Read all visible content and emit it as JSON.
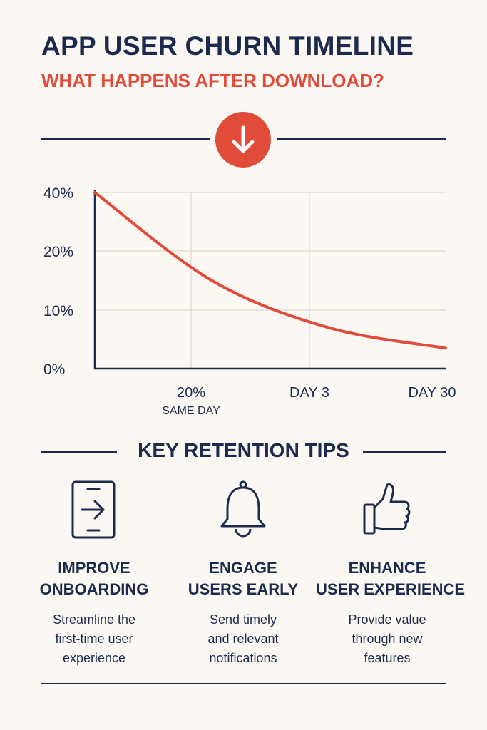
{
  "header": {
    "title": "APP USER CHURN TIMELINE",
    "subtitle": "WHAT HAPPENS AFTER DOWNLOAD?"
  },
  "badge": {
    "icon": "arrow-down-icon",
    "color": "#e04b3a"
  },
  "chart_data": {
    "type": "line",
    "y_tick_labels": [
      "40%",
      "20%",
      "10%",
      "0%"
    ],
    "x_tick_labels": [
      {
        "label": "20%",
        "sublabel": "SAME DAY"
      },
      {
        "label": "DAY 3",
        "sublabel": ""
      },
      {
        "label": "DAY 30",
        "sublabel": ""
      }
    ],
    "series": [
      {
        "color": "#e04b3a",
        "points": [
          {
            "x": 0,
            "y": 40
          },
          {
            "x": 1,
            "y": 15
          },
          {
            "x": 2,
            "y": 7
          },
          {
            "x": 3,
            "y": 3.5
          }
        ]
      }
    ],
    "grid": true
  },
  "tips_section": {
    "title": "KEY RETENTION TIPS",
    "tips": [
      {
        "icon": "phone-arrow-icon",
        "title_lines": [
          "IMPROVE",
          "ONBOARDING"
        ],
        "desc_lines": [
          "Streamline the",
          "first-time user",
          "experience"
        ]
      },
      {
        "icon": "bell-icon",
        "title_lines": [
          "ENGAGE",
          "USERS EARLY"
        ],
        "desc_lines": [
          "Send timely",
          "and relevant",
          "notifications"
        ]
      },
      {
        "icon": "thumbs-up-icon",
        "title_lines": [
          "ENHANCE",
          "USER EXPERIENCE"
        ],
        "desc_lines": [
          "Provide value",
          "through new",
          "features"
        ]
      }
    ]
  }
}
